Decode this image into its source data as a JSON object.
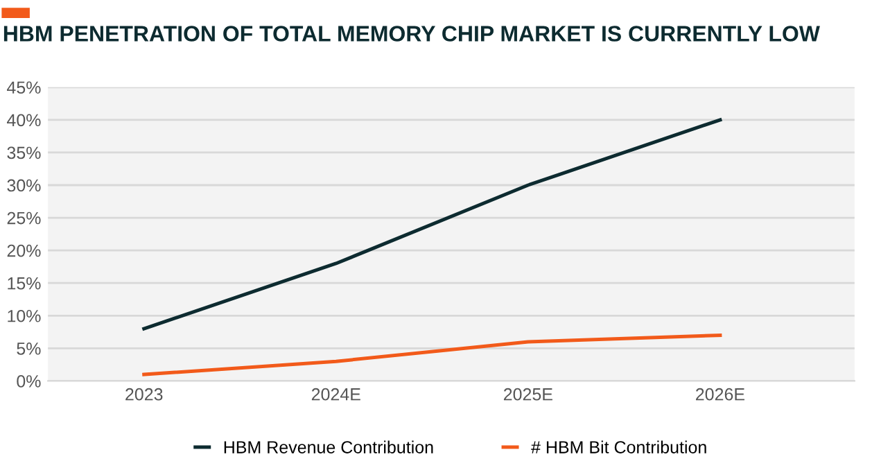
{
  "chart_data": {
    "type": "line",
    "title": "HBM PENETRATION OF TOTAL MEMORY CHIP MARKET IS CURRENTLY LOW",
    "categories": [
      "2023",
      "2024E",
      "2025E",
      "2026E"
    ],
    "series": [
      {
        "name": "HBM Revenue Contribution",
        "color": "#0d2b30",
        "values": [
          8,
          18,
          30,
          40
        ]
      },
      {
        "name": "# HBM Bit Contribution",
        "color": "#f25a1a",
        "values": [
          1,
          3,
          6,
          7
        ]
      }
    ],
    "ylim": [
      0,
      45
    ],
    "yticks": [
      {
        "value": 0,
        "label": "0%"
      },
      {
        "value": 5,
        "label": "5%"
      },
      {
        "value": 10,
        "label": "10%"
      },
      {
        "value": 15,
        "label": "15%"
      },
      {
        "value": 20,
        "label": "20%"
      },
      {
        "value": 25,
        "label": "25%"
      },
      {
        "value": 30,
        "label": "30%"
      },
      {
        "value": 35,
        "label": "35%"
      },
      {
        "value": 40,
        "label": "40%"
      },
      {
        "value": 45,
        "label": "45%"
      }
    ],
    "grid": "y",
    "legend": "bottom",
    "marker": "none",
    "line_style": "solid"
  }
}
